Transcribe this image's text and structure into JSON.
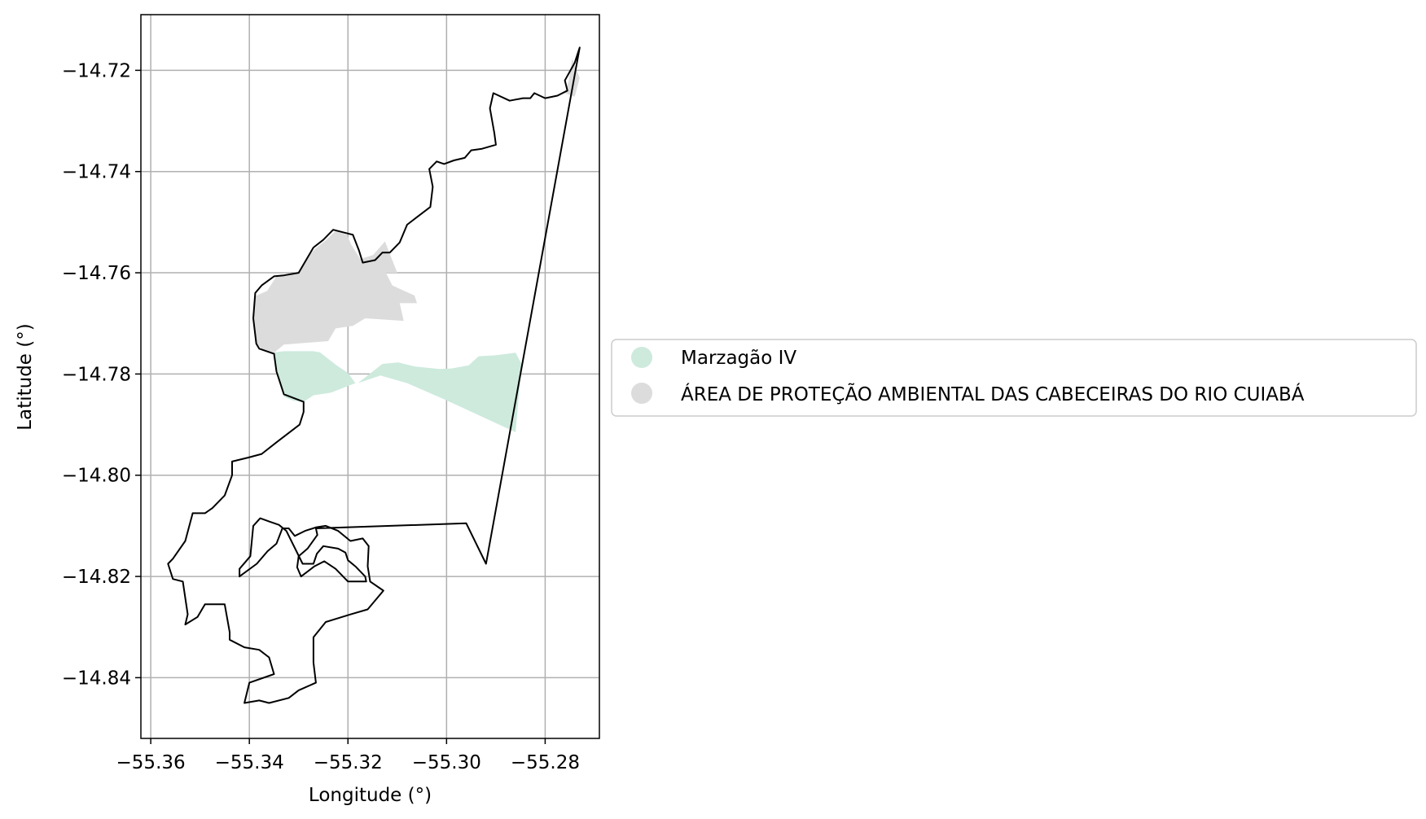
{
  "chart_data": {
    "type": "map",
    "xlabel": "Longitude (°)",
    "ylabel": "Latitude (°)",
    "xlim": [
      -55.362,
      -55.269
    ],
    "ylim": [
      -14.852,
      -14.709
    ],
    "x_ticks": [
      {
        "value": -55.36,
        "label": "−55.36"
      },
      {
        "value": -55.34,
        "label": "−55.34"
      },
      {
        "value": -55.32,
        "label": "−55.32"
      },
      {
        "value": -55.3,
        "label": "−55.30"
      },
      {
        "value": -55.28,
        "label": "−55.28"
      }
    ],
    "y_ticks": [
      {
        "value": -14.72,
        "label": "−14.72"
      },
      {
        "value": -14.74,
        "label": "−14.74"
      },
      {
        "value": -14.76,
        "label": "−14.76"
      },
      {
        "value": -14.78,
        "label": "−14.78"
      },
      {
        "value": -14.8,
        "label": "−14.80"
      },
      {
        "value": -14.82,
        "label": "−14.82"
      },
      {
        "value": -14.84,
        "label": "−14.84"
      }
    ],
    "grid": true,
    "legend_position": "right",
    "legend": [
      {
        "label": "Marzagão IV",
        "color": "#cdeadd"
      },
      {
        "label": "ÁREA DE PROTEÇÃO AMBIENTAL DAS CABECEIRAS DO RIO CUIABÁ",
        "color": "#dcdcdc"
      }
    ],
    "layers": [
      {
        "name": "ÁREA DE PROTEÇÃO AMBIENTAL DAS CABECEIRAS DO RIO CUIABÁ",
        "color": "#dcdcdc",
        "coordinates": [
          [
            -55.3364,
            -14.7636
          ],
          [
            -55.3345,
            -14.7607
          ],
          [
            -55.3318,
            -14.7603
          ],
          [
            -55.33,
            -14.7597
          ],
          [
            -55.3285,
            -14.7573
          ],
          [
            -55.3267,
            -14.7553
          ],
          [
            -55.3245,
            -14.7536
          ],
          [
            -55.3225,
            -14.7517
          ],
          [
            -55.3202,
            -14.7525
          ],
          [
            -55.3193,
            -14.7545
          ],
          [
            -55.3175,
            -14.7573
          ],
          [
            -55.3149,
            -14.7565
          ],
          [
            -55.3125,
            -14.7538
          ],
          [
            -55.31,
            -14.76
          ],
          [
            -55.3123,
            -14.76
          ],
          [
            -55.311,
            -14.7625
          ],
          [
            -55.3065,
            -14.7645
          ],
          [
            -55.306,
            -14.766
          ],
          [
            -55.3095,
            -14.766
          ],
          [
            -55.3087,
            -14.7695
          ],
          [
            -55.3165,
            -14.769
          ],
          [
            -55.319,
            -14.7705
          ],
          [
            -55.3225,
            -14.771
          ],
          [
            -55.324,
            -14.7735
          ],
          [
            -55.333,
            -14.7742
          ],
          [
            -55.3349,
            -14.7757
          ],
          [
            -55.3376,
            -14.775
          ],
          [
            -55.3386,
            -14.7738
          ],
          [
            -55.3392,
            -14.768
          ],
          [
            -55.339,
            -14.7647
          ]
        ]
      },
      {
        "name": "ÁREA DE PROTEÇÃO AMBIENTAL DAS CABECEIRAS DO RIO CUIABÁ",
        "color": "#dcdcdc",
        "coordinates": [
          [
            -55.2745,
            -14.7177
          ],
          [
            -55.2752,
            -14.722
          ],
          [
            -55.276,
            -14.7245
          ],
          [
            -55.274,
            -14.7252
          ],
          [
            -55.273,
            -14.7215
          ]
        ]
      },
      {
        "name": "Marzagão IV",
        "color": "#cdeadd",
        "coordinates": [
          [
            -55.3349,
            -14.7757
          ],
          [
            -55.333,
            -14.7755
          ],
          [
            -55.327,
            -14.7755
          ],
          [
            -55.3257,
            -14.7757
          ],
          [
            -55.3223,
            -14.7783
          ],
          [
            -55.32,
            -14.7798
          ],
          [
            -55.3185,
            -14.7818
          ],
          [
            -55.3235,
            -14.7837
          ],
          [
            -55.327,
            -14.7842
          ],
          [
            -55.329,
            -14.7855
          ],
          [
            -55.331,
            -14.7853
          ],
          [
            -55.333,
            -14.7845
          ],
          [
            -55.3342,
            -14.7797
          ],
          [
            -55.3349,
            -14.7775
          ]
        ]
      },
      {
        "name": "Marzagão IV",
        "color": "#cdeadd",
        "coordinates": [
          [
            -55.313,
            -14.778
          ],
          [
            -55.3098,
            -14.7777
          ],
          [
            -55.3065,
            -14.7785
          ],
          [
            -55.3015,
            -14.779
          ],
          [
            -55.299,
            -14.7789
          ],
          [
            -55.2955,
            -14.7783
          ],
          [
            -55.2935,
            -14.7765
          ],
          [
            -55.29,
            -14.7763
          ],
          [
            -55.286,
            -14.7758
          ],
          [
            -55.2848,
            -14.778
          ],
          [
            -55.286,
            -14.7915
          ],
          [
            -55.292,
            -14.7888
          ],
          [
            -55.3,
            -14.7852
          ],
          [
            -55.308,
            -14.7818
          ],
          [
            -55.3134,
            -14.7803
          ],
          [
            -55.318,
            -14.7818
          ]
        ]
      }
    ],
    "outline": {
      "name": "boundary",
      "color": "#000000",
      "coordinates": [
        [
          -55.273,
          -14.7155
        ],
        [
          -55.274,
          -14.7185
        ],
        [
          -55.276,
          -14.722
        ],
        [
          -55.2755,
          -14.724
        ],
        [
          -55.2775,
          -14.725
        ],
        [
          -55.28,
          -14.7255
        ],
        [
          -55.2822,
          -14.7245
        ],
        [
          -55.283,
          -14.7255
        ],
        [
          -55.2845,
          -14.7255
        ],
        [
          -55.2872,
          -14.726
        ],
        [
          -55.2905,
          -14.7245
        ],
        [
          -55.2912,
          -14.7275
        ],
        [
          -55.2903,
          -14.7325
        ],
        [
          -55.29,
          -14.7347
        ],
        [
          -55.2928,
          -14.7355
        ],
        [
          -55.295,
          -14.7358
        ],
        [
          -55.2963,
          -14.7373
        ],
        [
          -55.2985,
          -14.7378
        ],
        [
          -55.3005,
          -14.7385
        ],
        [
          -55.302,
          -14.738
        ],
        [
          -55.3035,
          -14.7395
        ],
        [
          -55.3028,
          -14.743
        ],
        [
          -55.3033,
          -14.747
        ],
        [
          -55.306,
          -14.749
        ],
        [
          -55.308,
          -14.7505
        ],
        [
          -55.3095,
          -14.754
        ],
        [
          -55.3115,
          -14.756
        ],
        [
          -55.313,
          -14.756
        ],
        [
          -55.3145,
          -14.7575
        ],
        [
          -55.317,
          -14.758
        ],
        [
          -55.3178,
          -14.7555
        ],
        [
          -55.319,
          -14.7525
        ],
        [
          -55.321,
          -14.752
        ],
        [
          -55.323,
          -14.7515
        ],
        [
          -55.325,
          -14.7535
        ],
        [
          -55.327,
          -14.755
        ],
        [
          -55.3285,
          -14.7575
        ],
        [
          -55.33,
          -14.76
        ],
        [
          -55.333,
          -14.7605
        ],
        [
          -55.335,
          -14.7607
        ],
        [
          -55.3375,
          -14.7625
        ],
        [
          -55.3388,
          -14.764
        ],
        [
          -55.3392,
          -14.769
        ],
        [
          -55.3386,
          -14.774
        ],
        [
          -55.338,
          -14.775
        ],
        [
          -55.335,
          -14.776
        ],
        [
          -55.3345,
          -14.7795
        ],
        [
          -55.333,
          -14.784
        ],
        [
          -55.329,
          -14.7855
        ],
        [
          -55.329,
          -14.7875
        ],
        [
          -55.3298,
          -14.79
        ],
        [
          -55.3345,
          -14.7935
        ],
        [
          -55.3375,
          -14.7958
        ],
        [
          -55.3402,
          -14.7965
        ],
        [
          -55.3435,
          -14.7973
        ],
        [
          -55.3435,
          -14.8
        ],
        [
          -55.345,
          -14.804
        ],
        [
          -55.3475,
          -14.8065
        ],
        [
          -55.349,
          -14.8075
        ],
        [
          -55.3515,
          -14.8075
        ],
        [
          -55.353,
          -14.813
        ],
        [
          -55.3555,
          -14.8165
        ],
        [
          -55.3565,
          -14.8175
        ],
        [
          -55.3555,
          -14.8205
        ],
        [
          -55.3535,
          -14.821
        ],
        [
          -55.3525,
          -14.8275
        ],
        [
          -55.353,
          -14.8295
        ],
        [
          -55.3505,
          -14.828
        ],
        [
          -55.349,
          -14.8255
        ],
        [
          -55.345,
          -14.8255
        ],
        [
          -55.344,
          -14.831
        ],
        [
          -55.344,
          -14.8325
        ],
        [
          -55.341,
          -14.834
        ],
        [
          -55.338,
          -14.8345
        ],
        [
          -55.336,
          -14.836
        ],
        [
          -55.335,
          -14.8393
        ],
        [
          -55.34,
          -14.841
        ],
        [
          -55.341,
          -14.845
        ],
        [
          -55.338,
          -14.8445
        ],
        [
          -55.336,
          -14.845
        ],
        [
          -55.332,
          -14.844
        ],
        [
          -55.33,
          -14.8425
        ],
        [
          -55.3265,
          -14.841
        ],
        [
          -55.327,
          -14.837
        ],
        [
          -55.327,
          -14.832
        ],
        [
          -55.3245,
          -14.829
        ],
        [
          -55.3195,
          -14.8275
        ],
        [
          -55.316,
          -14.8265
        ],
        [
          -55.3128,
          -14.8228
        ],
        [
          -55.3155,
          -14.821
        ],
        [
          -55.316,
          -14.818
        ],
        [
          -55.3158,
          -14.814
        ],
        [
          -55.317,
          -14.8125
        ],
        [
          -55.3195,
          -14.813
        ],
        [
          -55.322,
          -14.811
        ],
        [
          -55.3245,
          -14.81
        ],
        [
          -55.3265,
          -14.8103
        ],
        [
          -55.3287,
          -14.811
        ],
        [
          -55.3308,
          -14.812
        ],
        [
          -55.332,
          -14.8105
        ],
        [
          -55.3333,
          -14.8105
        ],
        [
          -55.3345,
          -14.8135
        ],
        [
          -55.3363,
          -14.815
        ],
        [
          -55.3385,
          -14.8175
        ],
        [
          -55.342,
          -14.82
        ],
        [
          -55.342,
          -14.8185
        ],
        [
          -55.3398,
          -14.816
        ],
        [
          -55.3392,
          -14.81
        ],
        [
          -55.3378,
          -14.8085
        ],
        [
          -55.3358,
          -14.8092
        ],
        [
          -55.334,
          -14.8098
        ],
        [
          -55.3325,
          -14.811
        ],
        [
          -55.3292,
          -14.8175
        ],
        [
          -55.327,
          -14.8175
        ],
        [
          -55.3263,
          -14.8155
        ],
        [
          -55.325,
          -14.814
        ],
        [
          -55.322,
          -14.8145
        ],
        [
          -55.3205,
          -14.8153
        ],
        [
          -55.32,
          -14.8168
        ],
        [
          -55.3185,
          -14.818
        ],
        [
          -55.3165,
          -14.82
        ],
        [
          -55.3163,
          -14.821
        ],
        [
          -55.32,
          -14.821
        ],
        [
          -55.3225,
          -14.8185
        ],
        [
          -55.3248,
          -14.817
        ],
        [
          -55.3268,
          -14.818
        ],
        [
          -55.3295,
          -14.82
        ],
        [
          -55.3303,
          -14.8182
        ],
        [
          -55.33,
          -14.816
        ],
        [
          -55.3282,
          -14.8145
        ],
        [
          -55.3262,
          -14.8118
        ],
        [
          -55.3265,
          -14.8105
        ],
        [
          -55.296,
          -14.8095
        ],
        [
          -55.292,
          -14.8175
        ],
        [
          -55.273,
          -14.7155
        ]
      ]
    }
  }
}
